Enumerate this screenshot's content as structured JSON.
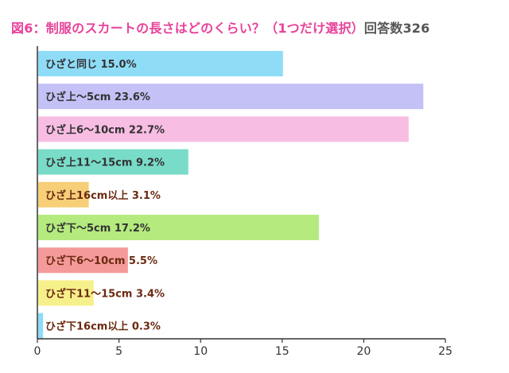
{
  "title": "図6：制服のスカートの長さはどのくらい？（1つだけ選択）",
  "subtitle": "回答数326",
  "chart_data": {
    "type": "bar",
    "orientation": "horizontal",
    "title": "図6：制服のスカートの長さはどのくらい？（1つだけ選択）",
    "subtitle": "回答数326",
    "xlim": [
      0,
      25
    ],
    "xticks": [
      0,
      5,
      10,
      15,
      20,
      25
    ],
    "grid": false,
    "legend": "none",
    "bars": [
      {
        "label": "ひざと同じ 15.0%",
        "value": 15.0,
        "color": "#8fdcf7"
      },
      {
        "label": "ひざ上～5cm 23.6%",
        "value": 23.6,
        "color": "#c3c1f5"
      },
      {
        "label": "ひざ上6～10cm 22.7%",
        "value": 22.7,
        "color": "#f8bde3"
      },
      {
        "label": "ひざ上11～15cm 9.2%",
        "value": 9.2,
        "color": "#79dcc8"
      },
      {
        "label": "ひざ上16cm以上 3.1%",
        "value": 3.1,
        "color": "#f6cf78"
      },
      {
        "label": "ひざ下～5cm 17.2%",
        "value": 17.2,
        "color": "#b4ea7e"
      },
      {
        "label": "ひざ下6～10cm 5.5%",
        "value": 5.5,
        "color": "#f59a9a"
      },
      {
        "label": "ひざ下11～15cm 3.4%",
        "value": 3.4,
        "color": "#f6f08a"
      },
      {
        "label": "ひざ下16cm以上 0.3%",
        "value": 0.3,
        "color": "#8fdcf7"
      }
    ]
  }
}
